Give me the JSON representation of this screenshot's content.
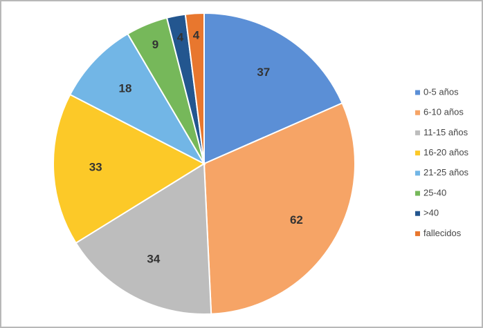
{
  "chart_data": {
    "type": "pie",
    "categories": [
      "0-5 años",
      "6-10 años",
      "11-15 años",
      "16-20 años",
      "21-25 años",
      "25-40",
      ">40",
      "fallecidos"
    ],
    "values": [
      37,
      62,
      34,
      33,
      18,
      9,
      4,
      4
    ],
    "colors": [
      "#5b8fd6",
      "#f6a466",
      "#bdbdbd",
      "#fcc928",
      "#72b6e6",
      "#76b85a",
      "#23568f",
      "#e8772e"
    ],
    "legend": "right"
  }
}
